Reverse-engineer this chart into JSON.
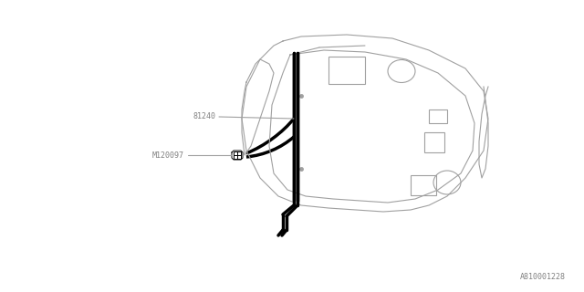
{
  "bg_color": "#ffffff",
  "line_color": "#a0a0a0",
  "bold_line_color": "#000000",
  "label_color": "#808080",
  "title": "",
  "part_label_1": "81240",
  "part_label_2": "M120097",
  "footnote": "A810001228",
  "fig_width": 6.4,
  "fig_height": 3.2
}
